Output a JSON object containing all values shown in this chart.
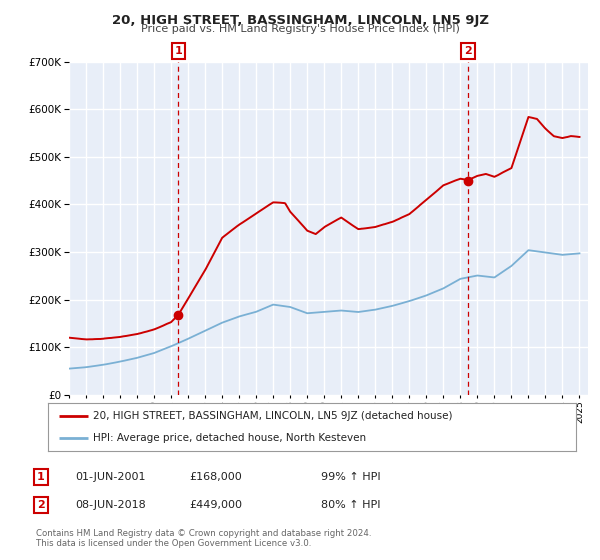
{
  "title": "20, HIGH STREET, BASSINGHAM, LINCOLN, LN5 9JZ",
  "subtitle": "Price paid vs. HM Land Registry's House Price Index (HPI)",
  "background_color": "#ffffff",
  "plot_bg_color": "#e8eef8",
  "grid_color": "#ffffff",
  "red_color": "#cc0000",
  "blue_color": "#7ab0d4",
  "marker1_date": 2001.42,
  "marker2_date": 2018.44,
  "marker1_value": 168000,
  "marker2_value": 449000,
  "legend_line1": "20, HIGH STREET, BASSINGHAM, LINCOLN, LN5 9JZ (detached house)",
  "legend_line2": "HPI: Average price, detached house, North Kesteven",
  "table_row1": [
    "1",
    "01-JUN-2001",
    "£168,000",
    "99% ↑ HPI"
  ],
  "table_row2": [
    "2",
    "08-JUN-2018",
    "£449,000",
    "80% ↑ HPI"
  ],
  "footer1": "Contains HM Land Registry data © Crown copyright and database right 2024.",
  "footer2": "This data is licensed under the Open Government Licence v3.0.",
  "ylim": [
    0,
    700000
  ],
  "xlim_start": 1995.0,
  "xlim_end": 2025.5
}
